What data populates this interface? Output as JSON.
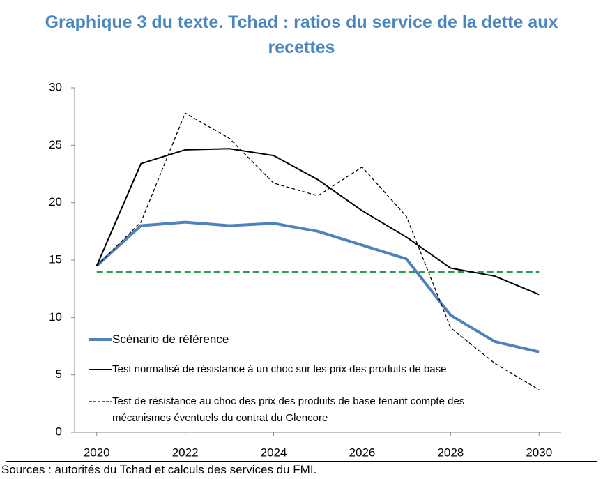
{
  "chart_data": {
    "type": "line",
    "title": "Graphique 3 du texte. Tchad : ratios du service de la dette aux recettes",
    "source": "Sources : autorités du Tchad et calculs des services du FMI.",
    "x": [
      2020,
      2021,
      2022,
      2023,
      2024,
      2025,
      2026,
      2027,
      2028,
      2029,
      2030
    ],
    "xlim": [
      2019.5,
      2030.5
    ],
    "xticks": [
      2020,
      2022,
      2024,
      2026,
      2028,
      2030
    ],
    "ylim": [
      0,
      30
    ],
    "yticks": [
      0,
      5,
      10,
      15,
      20,
      25,
      30
    ],
    "legend": "bottom-left",
    "series": [
      {
        "name": "Scénario de référence",
        "color": "#4f81bd",
        "style": "solid",
        "width": 4,
        "values": [
          14.5,
          18.0,
          18.3,
          18.0,
          18.2,
          17.5,
          16.3,
          15.1,
          10.2,
          7.9,
          7.0
        ]
      },
      {
        "name": "Test normalisé de résistance à un choc sur les prix des produits de base",
        "color": "#000000",
        "style": "solid",
        "width": 2,
        "values": [
          14.5,
          23.4,
          24.6,
          24.7,
          24.1,
          22.0,
          19.3,
          17.0,
          14.3,
          13.6,
          12.0
        ]
      },
      {
        "name": "Test de résistance au choc des prix des produits de base tenant compte des mécanismes éventuels du contrat du Glencore",
        "color": "#000000",
        "style": "dashed",
        "width": 1.3,
        "values": [
          14.5,
          18.3,
          27.8,
          25.6,
          21.7,
          20.6,
          23.1,
          18.8,
          9.1,
          6.0,
          3.7
        ]
      }
    ],
    "reference_line": {
      "x": [
        2020,
        2030
      ],
      "y": 14,
      "color": "#2e9a5a"
    }
  }
}
